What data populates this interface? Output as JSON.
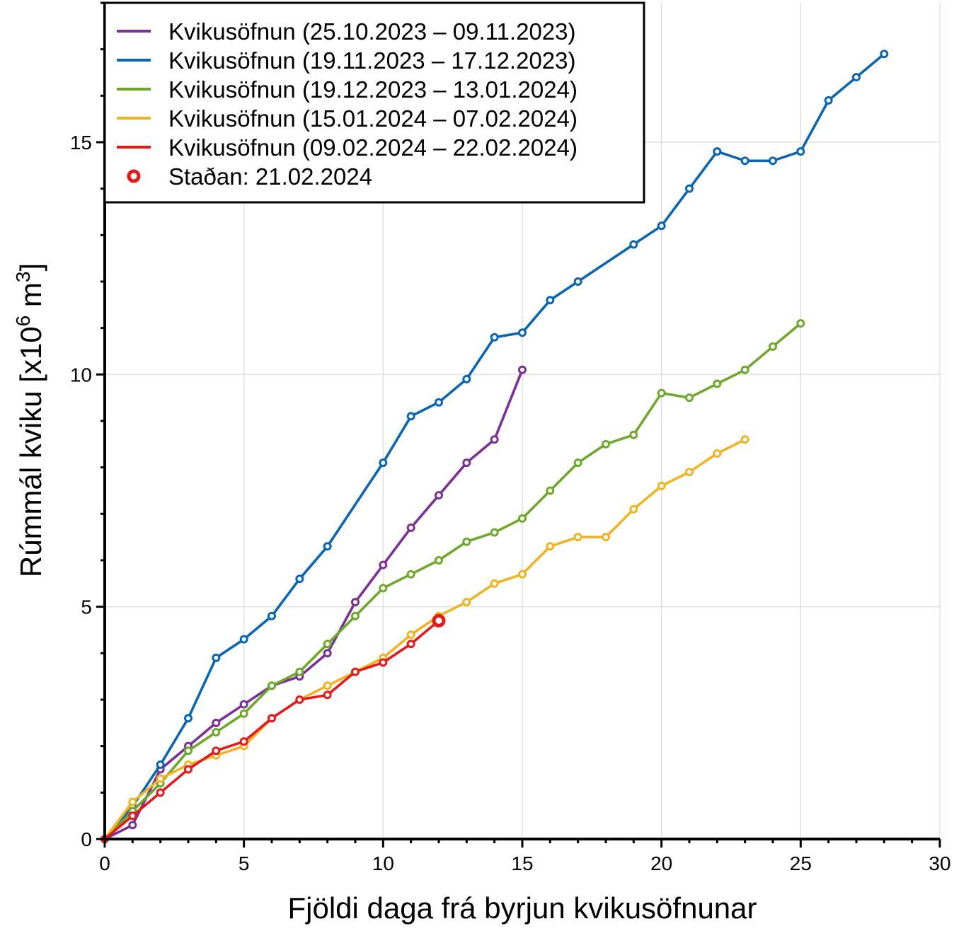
{
  "chart_data": {
    "type": "line",
    "xlabel": "Fjöldi daga frá byrjun kvikusöfnunar",
    "ylabel_main": "Rúmmál kviku [x10",
    "ylabel_sup1": "6",
    "ylabel_mid": " m",
    "ylabel_sup2": "3",
    "ylabel_end": "]",
    "xlim": [
      0,
      30
    ],
    "ylim": [
      0,
      18
    ],
    "xticks": [
      "0",
      "5",
      "10",
      "15",
      "20",
      "25",
      "30"
    ],
    "yticks": [
      "0",
      "5",
      "10",
      "15"
    ],
    "grid": true,
    "legend_position": "top-left",
    "series": [
      {
        "name": "Kvikusöfnun (25.10.2023 – 09.11.2023)",
        "color": "#7b3294",
        "x": [
          0,
          1,
          2,
          3,
          4,
          5,
          6,
          7,
          8,
          9,
          10,
          11,
          12,
          13,
          14,
          15
        ],
        "y": [
          0,
          0.3,
          1.5,
          2.0,
          2.5,
          2.9,
          3.3,
          3.5,
          4.0,
          5.1,
          5.9,
          6.7,
          7.4,
          8.1,
          8.6,
          10.1
        ]
      },
      {
        "name": "Kvikusöfnun (19.11.2023 – 17.12.2023)",
        "color": "#0a66b0",
        "x": [
          0,
          1,
          2,
          3,
          4,
          5,
          6,
          7,
          8,
          10,
          11,
          12,
          13,
          14,
          15,
          16,
          17,
          19,
          20,
          21,
          22,
          23,
          24,
          25,
          26,
          27,
          28
        ],
        "y": [
          0,
          0.7,
          1.6,
          2.6,
          3.9,
          4.3,
          4.8,
          5.6,
          6.3,
          8.1,
          9.1,
          9.4,
          9.9,
          10.8,
          10.9,
          11.6,
          12.0,
          12.8,
          13.2,
          14.0,
          14.8,
          14.6,
          14.6,
          14.8,
          15.9,
          16.4,
          16.9
        ]
      },
      {
        "name": "Kvikusöfnun (19.12.2023 – 13.01.2024)",
        "color": "#6fa82c",
        "x": [
          0,
          1,
          2,
          3,
          4,
          5,
          6,
          7,
          8,
          9,
          10,
          11,
          12,
          13,
          14,
          15,
          16,
          17,
          18,
          19,
          20,
          21,
          22,
          23,
          24,
          25
        ],
        "y": [
          0,
          0.6,
          1.2,
          1.9,
          2.3,
          2.7,
          3.3,
          3.6,
          4.2,
          4.8,
          5.4,
          5.7,
          6.0,
          6.4,
          6.6,
          6.9,
          7.5,
          8.1,
          8.5,
          8.7,
          9.6,
          9.5,
          9.8,
          10.1,
          10.6,
          11.1
        ]
      },
      {
        "name": "Kvikusöfnun (15.01.2024 – 07.02.2024)",
        "color": "#f0b323",
        "x": [
          0,
          1,
          2,
          3,
          4,
          5,
          6,
          7,
          8,
          9,
          10,
          11,
          12,
          13,
          14,
          15,
          16,
          17,
          18,
          19,
          20,
          21,
          22,
          23
        ],
        "y": [
          0,
          0.8,
          1.3,
          1.6,
          1.8,
          2.0,
          2.6,
          3.0,
          3.3,
          3.6,
          3.9,
          4.4,
          4.8,
          5.1,
          5.5,
          5.7,
          6.3,
          6.5,
          6.5,
          7.1,
          7.6,
          7.9,
          8.3,
          8.6
        ]
      },
      {
        "name": "Kvikusöfnun (09.02.2024 – 22.02.2024)",
        "color": "#e31a1c",
        "x": [
          0,
          1,
          2,
          3,
          4,
          5,
          6,
          7,
          8,
          9,
          10,
          11,
          12
        ],
        "y": [
          0,
          0.5,
          1.0,
          1.5,
          1.9,
          2.1,
          2.6,
          3.0,
          3.1,
          3.6,
          3.8,
          4.2,
          4.7
        ]
      }
    ],
    "current_point": {
      "label": "Staðan: 21.02.2024",
      "color": "#e31a1c",
      "x": 12,
      "y": 4.7
    }
  }
}
